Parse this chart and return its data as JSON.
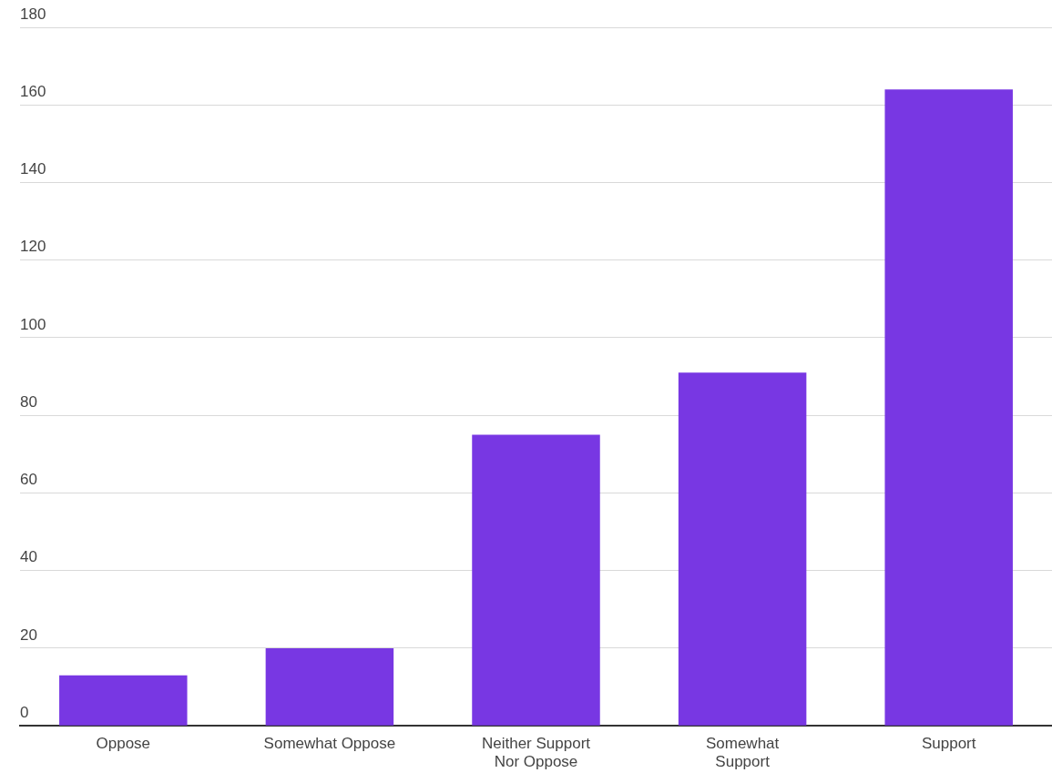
{
  "chart_data": {
    "type": "bar",
    "categories": [
      "Oppose",
      "Somewhat Oppose",
      "Neither Support Nor Oppose",
      "Somewhat Support",
      "Support"
    ],
    "values": [
      13,
      20,
      75,
      91,
      164
    ],
    "color": "#7837e3",
    "ylim": [
      0,
      180
    ],
    "yticks": [
      0,
      20,
      40,
      60,
      80,
      100,
      120,
      140,
      160,
      180
    ],
    "grid": "y",
    "legend": false
  }
}
